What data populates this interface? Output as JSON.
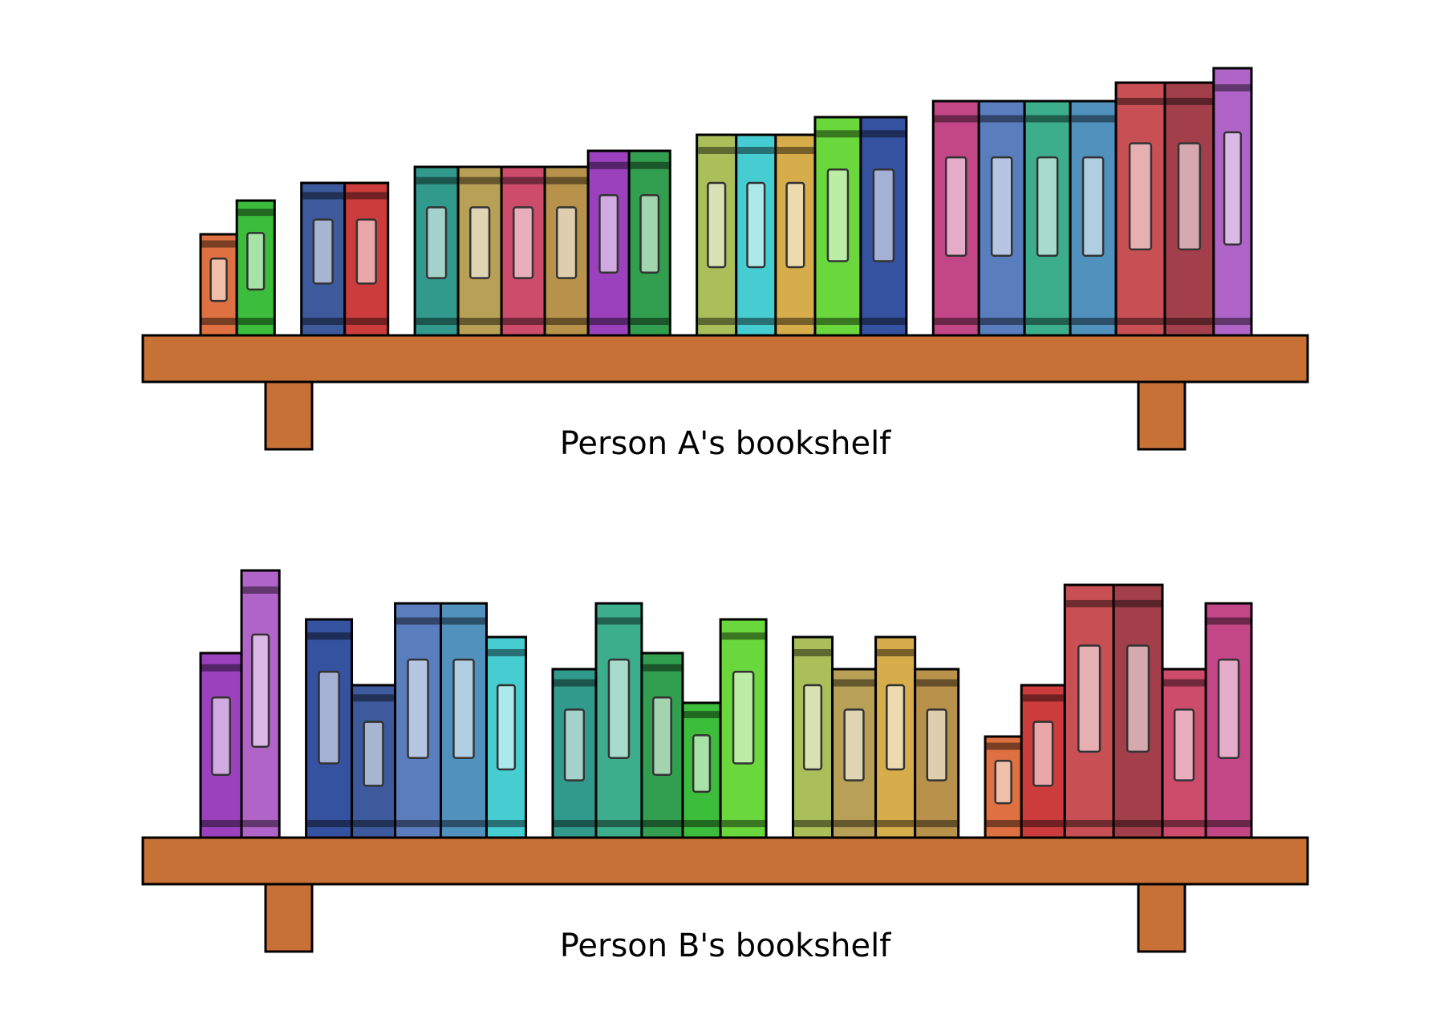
{
  "shelves": [
    {
      "id": "a",
      "caption": "Person A's bookshelf",
      "groups": [
        [
          {
            "color": "#de7041",
            "size": "xs"
          },
          {
            "color": "#3cbe3c",
            "size": "s"
          }
        ],
        [
          {
            "color": "#3c5a9c",
            "size": "m"
          },
          {
            "color": "#cd3c3c",
            "size": "m"
          }
        ],
        [
          {
            "color": "#329a8c",
            "size": "lg"
          },
          {
            "color": "#b8a056",
            "size": "lg"
          },
          {
            "color": "#cd4b6b",
            "size": "lg"
          },
          {
            "color": "#b8924a",
            "size": "lg"
          },
          {
            "color": "#9b41be",
            "size": "lg2"
          },
          {
            "color": "#329f50",
            "size": "lg2"
          }
        ],
        [
          {
            "color": "#aabe5a",
            "size": "xl"
          },
          {
            "color": "#46cdd2",
            "size": "xl"
          },
          {
            "color": "#d7ad4b",
            "size": "xl"
          },
          {
            "color": "#6ad83c",
            "size": "xl2"
          },
          {
            "color": "#3452a0",
            "size": "xl2"
          }
        ],
        [
          {
            "color": "#c34687",
            "size": "xxl"
          },
          {
            "color": "#5a7dbe",
            "size": "xxl"
          },
          {
            "color": "#3cae8c",
            "size": "xxl"
          },
          {
            "color": "#5091be",
            "size": "xxl"
          },
          {
            "color": "#c85055",
            "size": "xxl2"
          },
          {
            "color": "#a33f4b",
            "size": "xxl2"
          },
          {
            "color": "#b064c8",
            "size": "xxl3"
          }
        ]
      ]
    },
    {
      "id": "b",
      "caption": "Person B's bookshelf",
      "groups": [
        [
          {
            "color": "#9b41be",
            "size": "lg2"
          },
          {
            "color": "#b064c8",
            "size": "xxl3"
          }
        ],
        [
          {
            "color": "#3452a0",
            "size": "xl2"
          },
          {
            "color": "#3c5a9c",
            "size": "m"
          },
          {
            "color": "#5a7dbe",
            "size": "xxl"
          },
          {
            "color": "#5091be",
            "size": "xxl"
          },
          {
            "color": "#46cdd2",
            "size": "xl"
          }
        ],
        [
          {
            "color": "#329a8c",
            "size": "lg"
          },
          {
            "color": "#3cae8c",
            "size": "xxl"
          },
          {
            "color": "#329f50",
            "size": "lg2"
          },
          {
            "color": "#3cbe3c",
            "size": "s"
          },
          {
            "color": "#6ad83c",
            "size": "xl2"
          }
        ],
        [
          {
            "color": "#aabe5a",
            "size": "xl"
          },
          {
            "color": "#b8a056",
            "size": "lg"
          },
          {
            "color": "#d7ad4b",
            "size": "xl"
          },
          {
            "color": "#b8924a",
            "size": "lg"
          }
        ],
        [
          {
            "color": "#de7041",
            "size": "xs"
          },
          {
            "color": "#cd3c3c",
            "size": "m"
          },
          {
            "color": "#c85055",
            "size": "xxl2"
          },
          {
            "color": "#a33f4b",
            "size": "xxl2"
          },
          {
            "color": "#cd4b6b",
            "size": "lg"
          },
          {
            "color": "#c34687",
            "size": "xxl"
          }
        ]
      ]
    }
  ],
  "shelf_color": "#c87137",
  "outline_color": "#000000"
}
